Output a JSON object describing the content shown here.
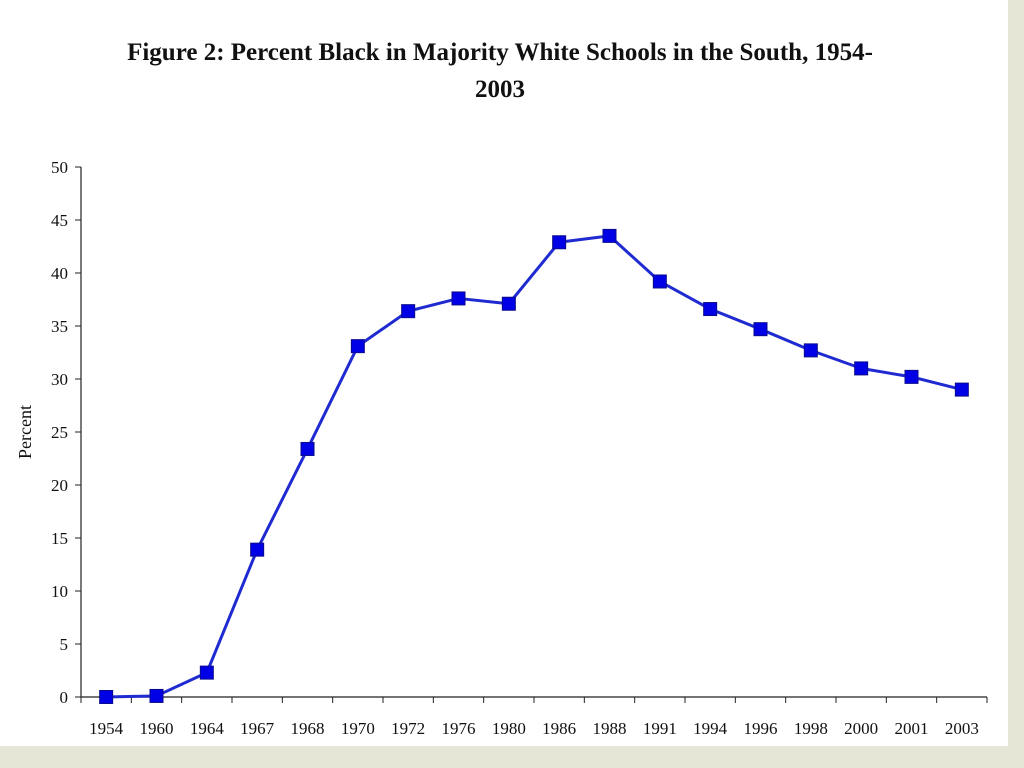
{
  "chart_data": {
    "type": "line",
    "title_line1": "Figure 2: Percent Black in Majority White Schools in the South, 1954-",
    "title_line2": "2003",
    "xlabel": "",
    "ylabel": "Percent",
    "ylim": [
      0,
      50
    ],
    "yticks": [
      0,
      5,
      10,
      15,
      20,
      25,
      30,
      35,
      40,
      45,
      50
    ],
    "categories": [
      "1954",
      "1960",
      "1964",
      "1967",
      "1968",
      "1970",
      "1972",
      "1976",
      "1980",
      "1986",
      "1988",
      "1991",
      "1994",
      "1996",
      "1998",
      "2000",
      "2001",
      "2003"
    ],
    "series": [
      {
        "values": [
          0.001,
          0.1,
          2.3,
          13.9,
          23.4,
          33.1,
          36.4,
          37.6,
          37.1,
          42.9,
          43.5,
          39.2,
          36.6,
          34.7,
          32.7,
          31.0,
          30.2,
          29.0
        ],
        "color": "#0000e6",
        "line_color": "#1f2bd1"
      }
    ],
    "grid": false,
    "legend": "none"
  }
}
